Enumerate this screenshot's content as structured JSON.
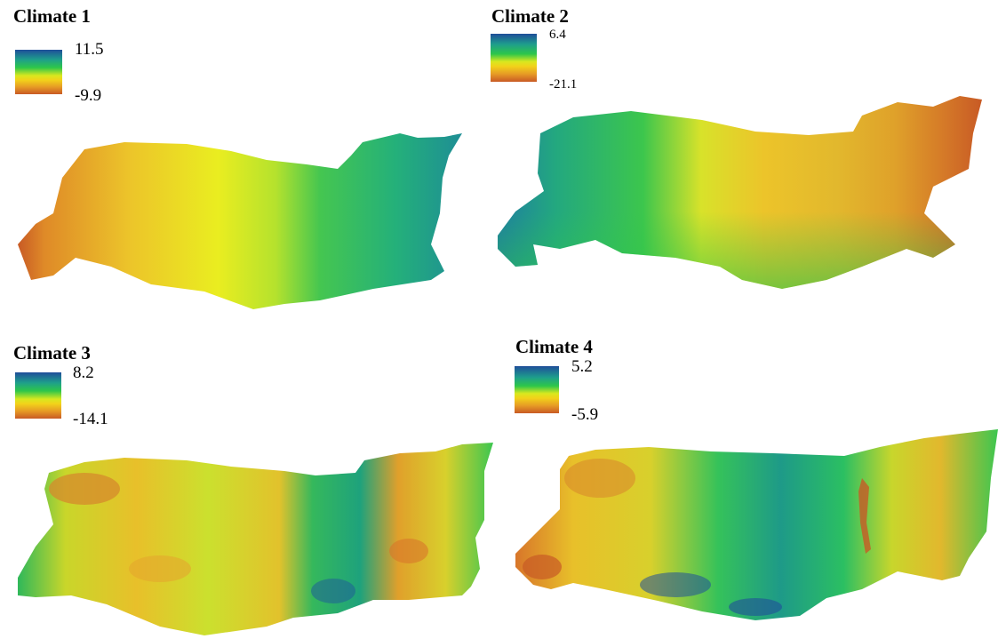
{
  "panels": [
    {
      "title": "Climate 1",
      "legend": {
        "max": "11.5",
        "min": "-9.9"
      }
    },
    {
      "title": "Climate 2",
      "legend": {
        "max": "6.4",
        "min": "-21.1"
      }
    },
    {
      "title": "Climate 3",
      "legend": {
        "max": "8.2",
        "min": "-14.1"
      }
    },
    {
      "title": "Climate 4",
      "legend": {
        "max": "5.2",
        "min": "-5.9"
      }
    }
  ],
  "colors": {
    "ramp": [
      "#1f4e9a",
      "#1e9e8c",
      "#2dc64a",
      "#d8e81f",
      "#f2d21a",
      "#e69a25",
      "#c85a25"
    ]
  }
}
